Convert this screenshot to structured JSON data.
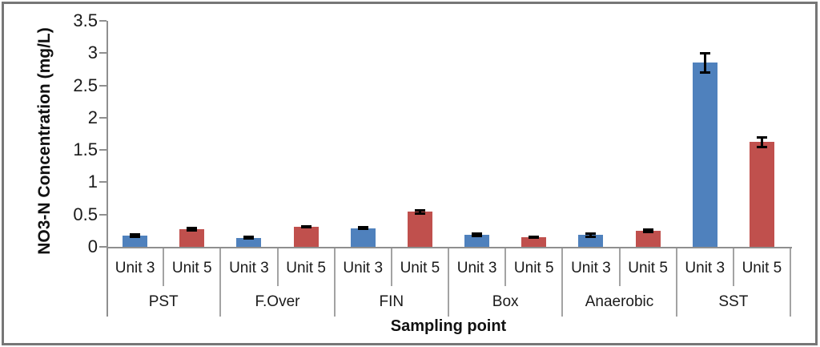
{
  "chart_data": {
    "type": "bar",
    "title": "",
    "xlabel": "Sampling point",
    "ylabel": "NO3-N Concentration (mg/L)",
    "ylim": [
      0,
      3.5
    ],
    "ytick_step": 0.5,
    "ytick_labels": [
      "0",
      "0.5",
      "1",
      "1.5",
      "2",
      "2.5",
      "3",
      "3.5"
    ],
    "grid": false,
    "legend": "none",
    "groups": [
      "PST",
      "F.Over",
      "FIN",
      "Box",
      "Anaerobic",
      "SST"
    ],
    "sub_categories": [
      "Unit 3",
      "Unit 5"
    ],
    "series": [
      {
        "name": "Unit 3",
        "color": "#4F81BD",
        "values": [
          0.17,
          0.14,
          0.29,
          0.19,
          0.18,
          2.85
        ],
        "errors": [
          0.02,
          0.01,
          0.01,
          0.02,
          0.02,
          0.15
        ]
      },
      {
        "name": "Unit 5",
        "color": "#C0504D",
        "values": [
          0.27,
          0.31,
          0.54,
          0.15,
          0.25,
          1.62
        ],
        "errors": [
          0.02,
          0.01,
          0.03,
          0.01,
          0.02,
          0.07
        ]
      }
    ],
    "colors": {
      "axis": "#8f8f8f",
      "separator": "#a3a3a3",
      "error_bar": "#000000",
      "text": "#1a1a1a",
      "frame_border": "#767676"
    }
  }
}
